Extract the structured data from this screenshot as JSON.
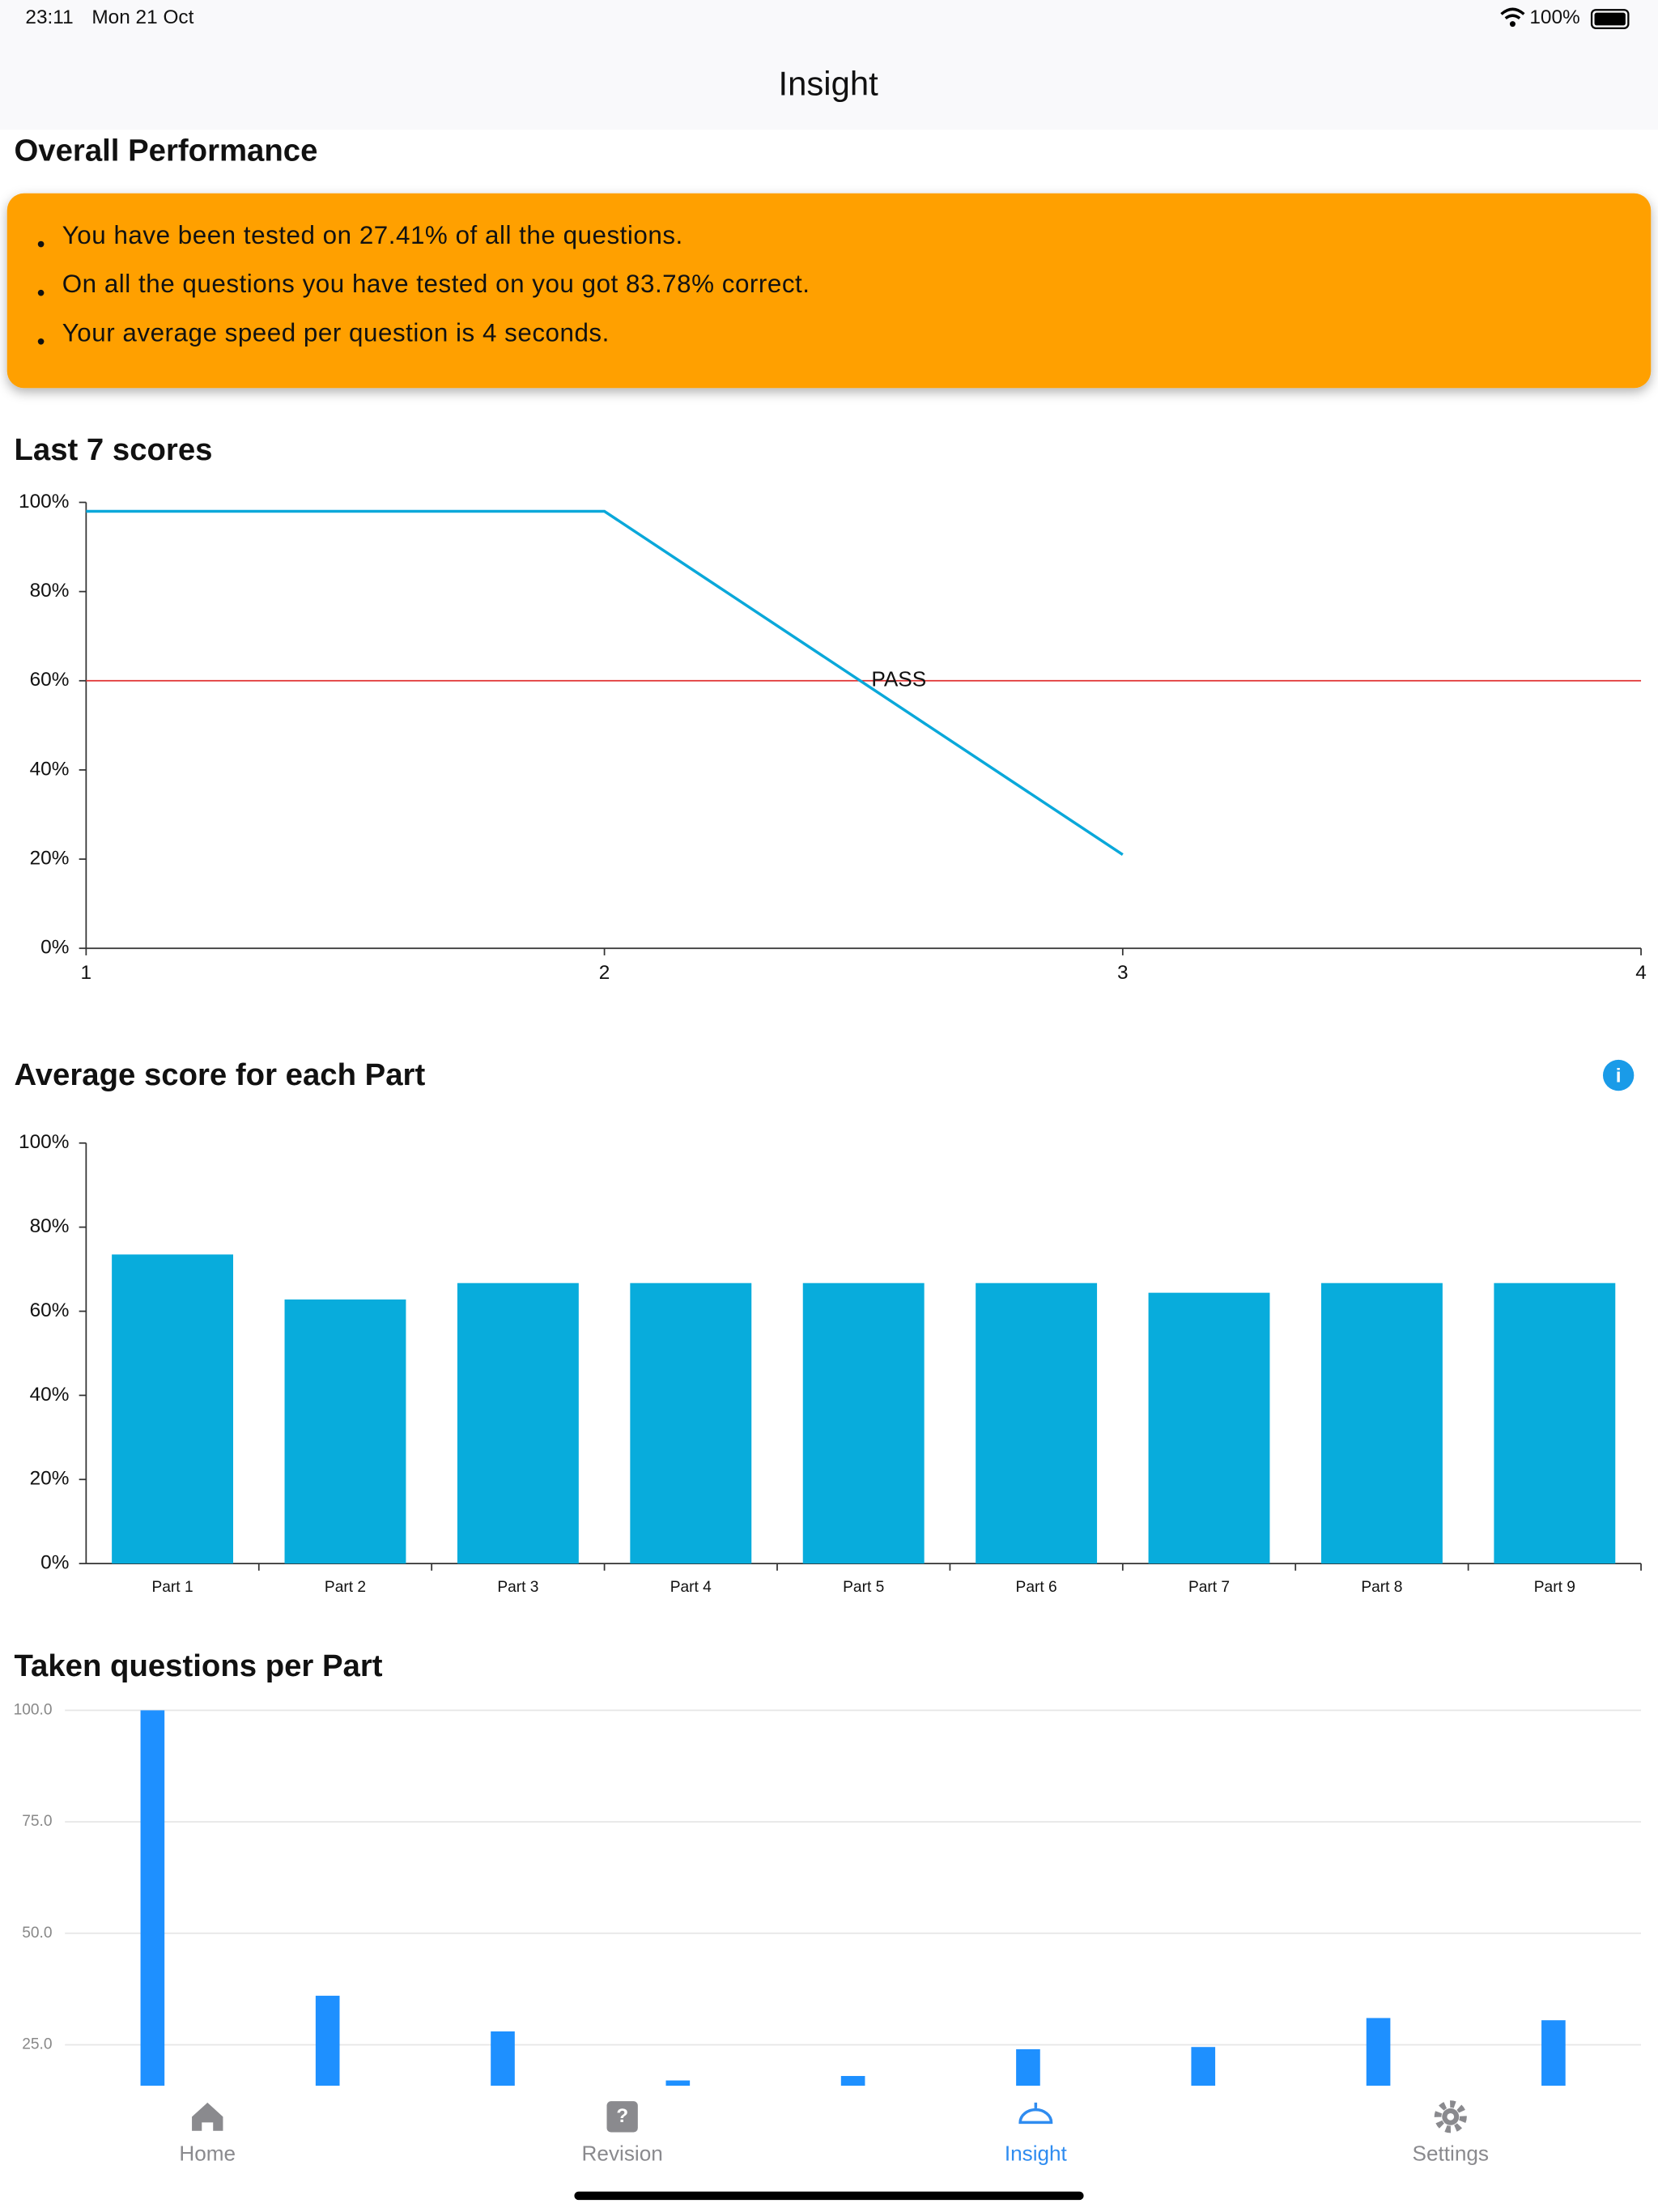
{
  "status_bar": {
    "time": "23:11",
    "date": "Mon 21 Oct",
    "battery": "100%"
  },
  "nav_title": "Insight",
  "overall": {
    "title": "Overall Performance",
    "color": "#ffa000",
    "bullets": [
      "You have been tested on 27.41% of all the questions.",
      "On all the questions you have tested on you got 83.78% correct.",
      "Your average speed per question is 4 seconds."
    ]
  },
  "chart_data": [
    {
      "type": "line",
      "title": "Last 7 scores",
      "x": [
        1,
        2,
        3
      ],
      "values": [
        98,
        98,
        21
      ],
      "color": "#0aa8da",
      "xlim": [
        1,
        4
      ],
      "xticks": [
        1,
        2,
        3,
        4
      ],
      "ylim": [
        0,
        100
      ],
      "yticks": [
        {
          "value": 0,
          "label": "0%"
        },
        {
          "value": 20,
          "label": "20%"
        },
        {
          "value": 40,
          "label": "40%"
        },
        {
          "value": 60,
          "label": "60%"
        },
        {
          "value": 80,
          "label": "80%"
        },
        {
          "value": 100,
          "label": "100%"
        }
      ],
      "pass_line": {
        "value": 60,
        "label": "PASS",
        "color": "#e03030"
      }
    },
    {
      "type": "bar",
      "title": "Average score for each Part",
      "categories": [
        "Part 1",
        "Part 2",
        "Part 3",
        "Part 4",
        "Part 5",
        "Part 6",
        "Part 7",
        "Part 8",
        "Part 9"
      ],
      "values": [
        73.5,
        62.8,
        66.7,
        66.7,
        66.7,
        66.7,
        64.4,
        66.7,
        66.7
      ],
      "color": "#08acdc",
      "ylim": [
        0,
        100
      ],
      "yticks": [
        {
          "value": 0,
          "label": "0%"
        },
        {
          "value": 20,
          "label": "20%"
        },
        {
          "value": 40,
          "label": "40%"
        },
        {
          "value": 60,
          "label": "60%"
        },
        {
          "value": 80,
          "label": "80%"
        },
        {
          "value": 100,
          "label": "100%"
        }
      ]
    },
    {
      "type": "bar",
      "title": "Taken questions per Part",
      "values": [
        100,
        36,
        28,
        17,
        18,
        24,
        24.5,
        31,
        30.5
      ],
      "color": "#1e90ff",
      "ylim": [
        0,
        100
      ],
      "grid": true,
      "yticks": [
        {
          "value": 25,
          "label": "25.0"
        },
        {
          "value": 50,
          "label": "50.0"
        },
        {
          "value": 75,
          "label": "75.0"
        },
        {
          "value": 100,
          "label": "100.0"
        }
      ]
    }
  ],
  "tab_bar": {
    "tabs": [
      {
        "label": "Home",
        "color": "#8a8a8e"
      },
      {
        "label": "Revision",
        "color": "#8a8a8e"
      },
      {
        "label": "Insight",
        "color": "#2f8cf0"
      },
      {
        "label": "Settings",
        "color": "#8a8a8e"
      }
    ]
  }
}
